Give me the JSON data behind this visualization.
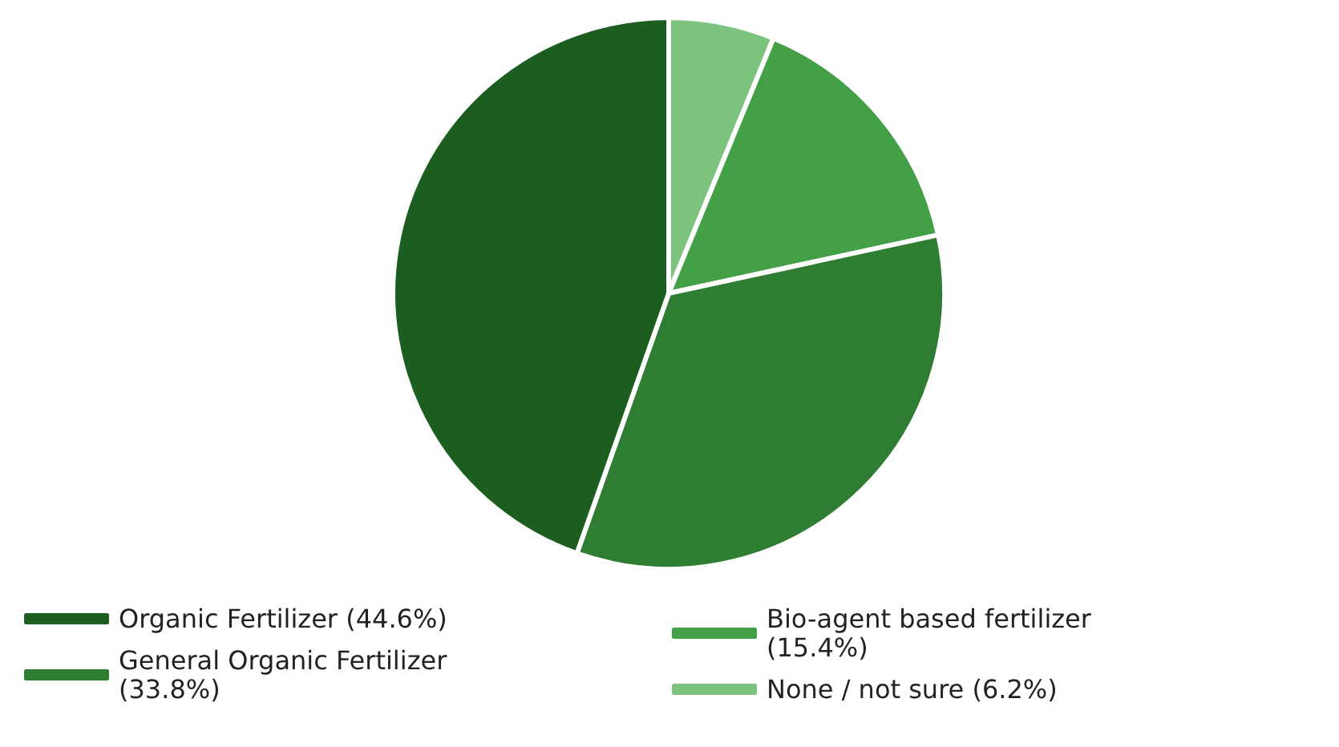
{
  "chart_data": {
    "type": "pie",
    "categories": [
      "None / not sure (6.2%)",
      "Bio-agent based fertilizer (15.4%)",
      "General Organic Fertilizer (33.8%)",
      "Organic Fertilizer (44.6%)"
    ],
    "values": [
      6.2,
      15.4,
      33.8,
      44.6
    ],
    "colors": [
      "#7cc47e",
      "#43a047",
      "#2e7d32",
      "#1b5e20"
    ],
    "legend": "bottom"
  }
}
